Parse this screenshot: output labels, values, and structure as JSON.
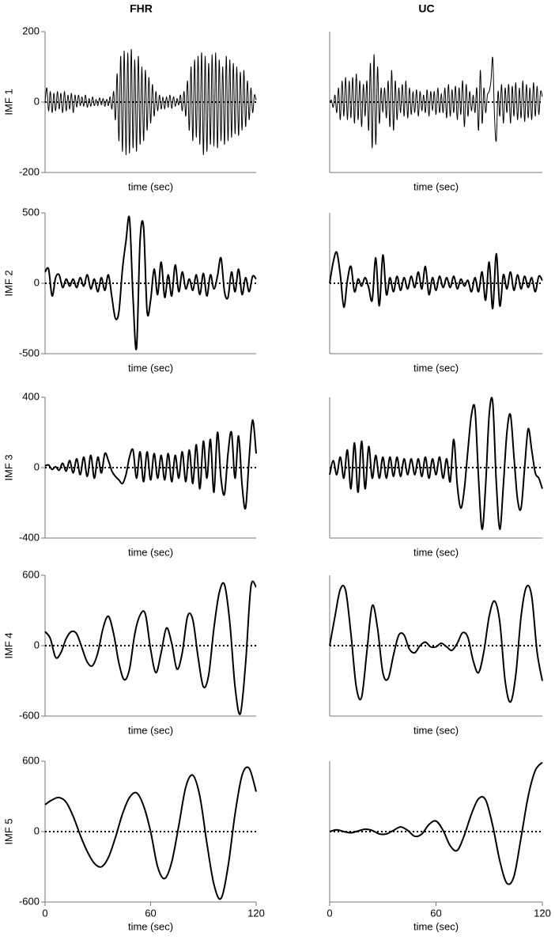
{
  "chart_data": [
    {
      "type": "line",
      "title": "FHR",
      "y_label": "IMF 1",
      "x_label": "time (sec)",
      "xlim": [
        0,
        120
      ],
      "ylim": [
        -200,
        200
      ],
      "yticks": [
        -200,
        0,
        200
      ],
      "color": "#000000",
      "x": [
        0,
        1,
        2,
        3,
        4,
        5,
        6,
        7,
        8,
        9,
        10,
        11,
        12,
        13,
        14,
        15,
        16,
        17,
        18,
        19,
        20,
        21,
        22,
        23,
        24,
        25,
        26,
        27,
        28,
        29,
        30,
        31,
        32,
        33,
        34,
        35,
        36,
        37,
        38,
        39,
        40,
        41,
        42,
        43,
        44,
        45,
        46,
        47,
        48,
        49,
        50,
        51,
        52,
        53,
        54,
        55,
        56,
        57,
        58,
        59,
        60,
        61,
        62,
        63,
        64,
        65,
        66,
        67,
        68,
        69,
        70,
        71,
        72,
        73,
        74,
        75,
        76,
        77,
        78,
        79,
        80,
        81,
        82,
        83,
        84,
        85,
        86,
        87,
        88,
        89,
        90,
        91,
        92,
        93,
        94,
        95,
        96,
        97,
        98,
        99,
        100,
        101,
        102,
        103,
        104,
        105,
        106,
        107,
        108,
        109,
        110,
        111,
        112,
        113,
        114,
        115,
        116,
        117,
        118,
        119,
        120
      ],
      "values": [
        0,
        40,
        -25,
        30,
        -30,
        25,
        -25,
        30,
        -20,
        25,
        -30,
        30,
        -25,
        20,
        -20,
        25,
        -30,
        20,
        -15,
        20,
        -10,
        15,
        -12,
        20,
        -15,
        10,
        -12,
        15,
        -10,
        8,
        -10,
        12,
        -8,
        10,
        -12,
        8,
        -10,
        15,
        -20,
        30,
        -50,
        80,
        -110,
        130,
        -140,
        145,
        -150,
        140,
        -145,
        150,
        -130,
        120,
        -140,
        130,
        -120,
        100,
        -110,
        90,
        -80,
        70,
        -60,
        50,
        -40,
        30,
        -25,
        20,
        -20,
        15,
        -20,
        15,
        -15,
        20,
        -18,
        15,
        -12,
        10,
        -8,
        20,
        -25,
        30,
        -40,
        60,
        -80,
        100,
        -110,
        120,
        -100,
        130,
        -120,
        140,
        -150,
        130,
        -140,
        110,
        -120,
        135,
        -125,
        140,
        -130,
        120,
        -110,
        100,
        -120,
        130,
        -110,
        120,
        -100,
        110,
        -90,
        100,
        -95,
        85,
        -80,
        90,
        -70,
        60,
        -50,
        40,
        -30,
        20,
        5
      ]
    },
    {
      "type": "line",
      "title": "UC",
      "x_label": "time (sec)",
      "xlim": [
        0,
        120
      ],
      "ylim": [
        -200,
        200
      ],
      "color": "#000000",
      "x": [
        0,
        1,
        2,
        3,
        4,
        5,
        6,
        7,
        8,
        9,
        10,
        11,
        12,
        13,
        14,
        15,
        16,
        17,
        18,
        19,
        20,
        21,
        22,
        23,
        24,
        25,
        26,
        27,
        28,
        29,
        30,
        31,
        32,
        33,
        34,
        35,
        36,
        37,
        38,
        39,
        40,
        41,
        42,
        43,
        44,
        45,
        46,
        47,
        48,
        49,
        50,
        51,
        52,
        53,
        54,
        55,
        56,
        57,
        58,
        59,
        60,
        61,
        62,
        63,
        64,
        65,
        66,
        67,
        68,
        69,
        70,
        71,
        72,
        73,
        74,
        75,
        76,
        77,
        78,
        79,
        80,
        81,
        82,
        83,
        84,
        85,
        86,
        87,
        88,
        89,
        90,
        91,
        92,
        93,
        94,
        95,
        96,
        97,
        98,
        99,
        100,
        101,
        102,
        103,
        104,
        105,
        106,
        107,
        108,
        109,
        110,
        111,
        112,
        113,
        114,
        115,
        116,
        117,
        118,
        119,
        120
      ],
      "values": [
        0,
        5,
        -15,
        20,
        -30,
        40,
        -50,
        60,
        -40,
        70,
        -50,
        60,
        -45,
        70,
        -60,
        80,
        -50,
        60,
        -70,
        50,
        -40,
        60,
        -80,
        110,
        -130,
        135,
        -120,
        100,
        -60,
        40,
        -30,
        40,
        -45,
        60,
        -70,
        90,
        -80,
        60,
        -50,
        40,
        -30,
        50,
        -40,
        60,
        -45,
        40,
        -35,
        30,
        -30,
        35,
        -40,
        30,
        -25,
        20,
        -30,
        35,
        -40,
        30,
        -25,
        30,
        -35,
        40,
        -30,
        25,
        -30,
        40,
        -45,
        50,
        -40,
        35,
        -30,
        45,
        -50,
        40,
        -35,
        60,
        -70,
        50,
        -40,
        30,
        -25,
        20,
        -30,
        40,
        -80,
        90,
        -60,
        40,
        -30,
        20,
        30,
        60,
        125,
        -40,
        -110,
        30,
        -40,
        50,
        -60,
        40,
        -30,
        50,
        -60,
        45,
        -40,
        55,
        -50,
        40,
        -45,
        60,
        -55,
        50,
        -45,
        40,
        -50,
        55,
        -40,
        45,
        -35,
        30,
        15
      ]
    },
    {
      "type": "line",
      "y_label": "IMF 2",
      "x_label": "time (sec)",
      "xlim": [
        0,
        120
      ],
      "ylim": [
        -500,
        500
      ],
      "yticks": [
        -500,
        0,
        500
      ],
      "color": "#000000",
      "x": [
        0,
        2,
        4,
        6,
        8,
        10,
        12,
        14,
        16,
        18,
        20,
        22,
        24,
        26,
        28,
        30,
        32,
        34,
        36,
        38,
        40,
        42,
        44,
        46,
        48,
        50,
        52,
        54,
        56,
        58,
        60,
        62,
        64,
        66,
        68,
        70,
        72,
        74,
        76,
        78,
        80,
        82,
        84,
        86,
        88,
        90,
        92,
        94,
        96,
        98,
        100,
        102,
        104,
        106,
        108,
        110,
        112,
        114,
        116,
        118,
        120
      ],
      "values": [
        80,
        100,
        -90,
        40,
        60,
        -30,
        30,
        -20,
        30,
        -30,
        40,
        -20,
        60,
        -40,
        30,
        -60,
        40,
        -50,
        60,
        -100,
        -250,
        -200,
        100,
        300,
        460,
        -100,
        -460,
        300,
        400,
        -200,
        -120,
        100,
        -80,
        150,
        -100,
        60,
        -90,
        130,
        -60,
        80,
        -40,
        30,
        -50,
        60,
        -80,
        70,
        -90,
        60,
        -40,
        50,
        180,
        -60,
        -100,
        80,
        -60,
        100,
        -80,
        40,
        -60,
        50,
        30
      ]
    },
    {
      "type": "line",
      "x_label": "time (sec)",
      "xlim": [
        0,
        120
      ],
      "ylim": [
        -500,
        500
      ],
      "color": "#000000",
      "x": [
        0,
        2,
        4,
        6,
        8,
        10,
        12,
        14,
        16,
        18,
        20,
        22,
        24,
        26,
        28,
        30,
        32,
        34,
        36,
        38,
        40,
        42,
        44,
        46,
        48,
        50,
        52,
        54,
        56,
        58,
        60,
        62,
        64,
        66,
        68,
        70,
        72,
        74,
        76,
        78,
        80,
        82,
        84,
        86,
        88,
        90,
        92,
        94,
        96,
        98,
        100,
        102,
        104,
        106,
        108,
        110,
        112,
        114,
        116,
        118,
        120
      ],
      "values": [
        0,
        150,
        220,
        60,
        -170,
        20,
        120,
        -60,
        30,
        -20,
        40,
        -30,
        -120,
        180,
        -160,
        200,
        -80,
        40,
        -60,
        50,
        -50,
        40,
        -40,
        50,
        -30,
        80,
        -40,
        120,
        -80,
        40,
        -50,
        50,
        -30,
        40,
        -30,
        50,
        -40,
        30,
        -20,
        20,
        -60,
        40,
        -60,
        80,
        -120,
        150,
        -180,
        210,
        -160,
        60,
        -40,
        80,
        -50,
        60,
        -40,
        50,
        -30,
        40,
        -60,
        50,
        20
      ]
    },
    {
      "type": "line",
      "y_label": "IMF 3",
      "x_label": "time (sec)",
      "xlim": [
        0,
        120
      ],
      "ylim": [
        -400,
        400
      ],
      "yticks": [
        -400,
        0,
        400
      ],
      "color": "#000000",
      "x": [
        0,
        2,
        4,
        6,
        8,
        10,
        12,
        14,
        16,
        18,
        20,
        22,
        24,
        26,
        28,
        30,
        32,
        34,
        36,
        38,
        40,
        42,
        44,
        46,
        48,
        50,
        52,
        54,
        56,
        58,
        60,
        62,
        64,
        66,
        68,
        70,
        72,
        74,
        76,
        78,
        80,
        82,
        84,
        86,
        88,
        90,
        92,
        94,
        96,
        98,
        100,
        102,
        104,
        106,
        108,
        110,
        112,
        114,
        116,
        118,
        120
      ],
      "values": [
        10,
        15,
        -10,
        5,
        -15,
        25,
        -20,
        40,
        -30,
        50,
        -40,
        60,
        -50,
        70,
        -60,
        60,
        -30,
        80,
        40,
        -20,
        -50,
        -70,
        -90,
        -40,
        60,
        100,
        -60,
        90,
        -80,
        90,
        -70,
        80,
        -60,
        70,
        -70,
        80,
        -80,
        70,
        -60,
        90,
        -80,
        100,
        -90,
        130,
        -120,
        150,
        -60,
        160,
        -140,
        200,
        -60,
        -150,
        80,
        200,
        -60,
        180,
        -100,
        -230,
        50,
        270,
        80
      ]
    },
    {
      "type": "line",
      "x_label": "time (sec)",
      "xlim": [
        0,
        120
      ],
      "ylim": [
        -400,
        400
      ],
      "color": "#000000",
      "x": [
        0,
        2,
        4,
        6,
        8,
        10,
        12,
        14,
        16,
        18,
        20,
        22,
        24,
        26,
        28,
        30,
        32,
        34,
        36,
        38,
        40,
        42,
        44,
        46,
        48,
        50,
        52,
        54,
        56,
        58,
        60,
        62,
        64,
        66,
        68,
        70,
        72,
        74,
        76,
        78,
        80,
        82,
        84,
        86,
        88,
        90,
        92,
        94,
        96,
        98,
        100,
        102,
        104,
        106,
        108,
        110,
        112,
        114,
        116,
        118,
        120
      ],
      "values": [
        -40,
        40,
        -40,
        60,
        -60,
        100,
        -120,
        140,
        -140,
        150,
        -120,
        120,
        -60,
        70,
        -60,
        60,
        -60,
        60,
        -50,
        60,
        -50,
        50,
        -40,
        50,
        -40,
        50,
        -50,
        60,
        -60,
        50,
        -40,
        60,
        -60,
        50,
        -80,
        160,
        -100,
        -230,
        -120,
        100,
        300,
        330,
        -60,
        -350,
        -100,
        300,
        370,
        -80,
        -350,
        -100,
        200,
        300,
        60,
        -180,
        -230,
        0,
        220,
        100,
        -30,
        -60,
        -120
      ]
    },
    {
      "type": "line",
      "y_label": "IMF 4",
      "x_label": "time (sec)",
      "xlim": [
        0,
        120
      ],
      "ylim": [
        -600,
        600
      ],
      "yticks": [
        -600,
        0,
        600
      ],
      "color": "#000000",
      "x": [
        0,
        3,
        6,
        9,
        12,
        15,
        18,
        21,
        24,
        27,
        30,
        33,
        36,
        39,
        42,
        45,
        48,
        51,
        54,
        57,
        60,
        63,
        66,
        69,
        72,
        75,
        78,
        81,
        84,
        87,
        90,
        93,
        96,
        99,
        102,
        105,
        108,
        111,
        114,
        117,
        120
      ],
      "values": [
        120,
        60,
        -100,
        -60,
        60,
        120,
        100,
        -20,
        -140,
        -170,
        -60,
        150,
        250,
        100,
        -150,
        -290,
        -200,
        100,
        260,
        270,
        -30,
        -230,
        -60,
        150,
        20,
        -200,
        -60,
        250,
        220,
        -100,
        -350,
        -250,
        150,
        450,
        520,
        200,
        -350,
        -580,
        -150,
        500,
        500
      ]
    },
    {
      "type": "line",
      "x_label": "time (sec)",
      "xlim": [
        0,
        120
      ],
      "ylim": [
        -600,
        600
      ],
      "color": "#000000",
      "x": [
        0,
        3,
        6,
        9,
        12,
        15,
        18,
        21,
        24,
        27,
        30,
        33,
        36,
        39,
        42,
        45,
        48,
        51,
        54,
        57,
        60,
        63,
        66,
        69,
        72,
        75,
        78,
        81,
        84,
        87,
        90,
        93,
        96,
        99,
        102,
        105,
        108,
        111,
        114,
        117,
        120
      ],
      "values": [
        0,
        250,
        480,
        470,
        100,
        -350,
        -440,
        -50,
        340,
        150,
        -230,
        -280,
        -80,
        90,
        90,
        -30,
        -60,
        0,
        30,
        -10,
        -10,
        20,
        -10,
        -40,
        20,
        110,
        70,
        -130,
        -230,
        -50,
        250,
        380,
        200,
        -300,
        -480,
        -250,
        250,
        500,
        420,
        -50,
        -300
      ]
    },
    {
      "type": "line",
      "y_label": "IMF 5",
      "x_label": "time (sec)",
      "xlim": [
        0,
        120
      ],
      "ylim": [
        -600,
        600
      ],
      "yticks": [
        -600,
        0,
        600
      ],
      "xticks": [
        0,
        60,
        120
      ],
      "color": "#000000",
      "x": [
        0,
        4,
        8,
        12,
        16,
        20,
        24,
        28,
        32,
        36,
        40,
        44,
        48,
        52,
        56,
        60,
        64,
        68,
        72,
        76,
        80,
        84,
        88,
        92,
        96,
        100,
        104,
        108,
        112,
        116,
        120
      ],
      "values": [
        230,
        270,
        290,
        250,
        130,
        -30,
        -170,
        -270,
        -300,
        -220,
        -50,
        150,
        290,
        330,
        220,
        0,
        -300,
        -400,
        -260,
        50,
        380,
        480,
        300,
        -100,
        -450,
        -570,
        -300,
        150,
        480,
        540,
        340
      ]
    },
    {
      "type": "line",
      "x_label": "time (sec)",
      "xlim": [
        0,
        120
      ],
      "ylim": [
        -600,
        600
      ],
      "xticks": [
        0,
        60,
        120
      ],
      "color": "#000000",
      "x": [
        0,
        4,
        8,
        12,
        16,
        20,
        24,
        28,
        32,
        36,
        40,
        44,
        48,
        52,
        56,
        60,
        64,
        68,
        72,
        76,
        80,
        84,
        88,
        92,
        96,
        100,
        104,
        108,
        112,
        116,
        120
      ],
      "values": [
        0,
        15,
        0,
        -10,
        5,
        20,
        10,
        -20,
        -20,
        10,
        40,
        10,
        -40,
        -20,
        60,
        90,
        10,
        -120,
        -160,
        -30,
        150,
        280,
        270,
        50,
        -250,
        -440,
        -380,
        -50,
        300,
        520,
        590
      ]
    }
  ]
}
